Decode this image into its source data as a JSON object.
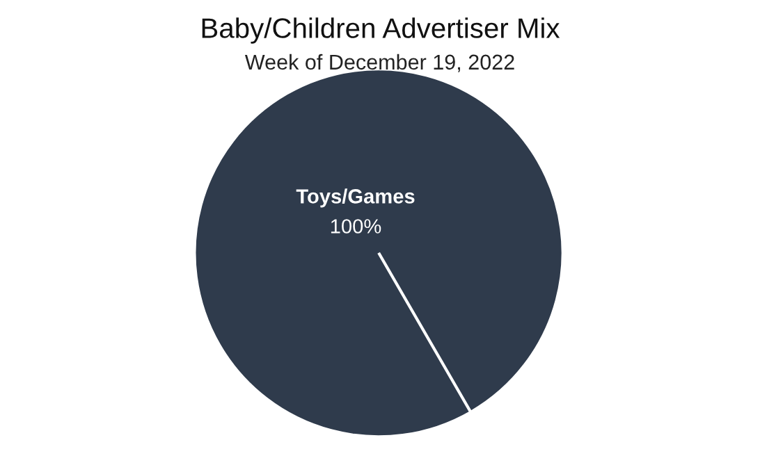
{
  "chart_data": {
    "type": "pie",
    "title": "Baby/Children Advertiser Mix",
    "subtitle": "Week of December 19, 2022",
    "categories": [
      "Toys/Games"
    ],
    "values": [
      100
    ],
    "colors": [
      "#2f3b4c"
    ],
    "value_labels": [
      "100%"
    ]
  }
}
